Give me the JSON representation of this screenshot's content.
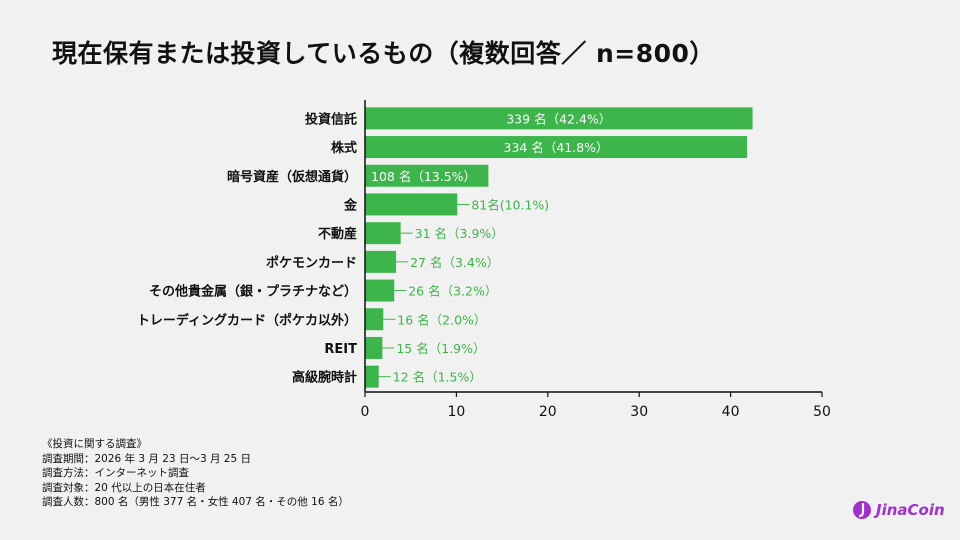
{
  "title": "現在保有または投資しているもの（複数回答／ n=800）",
  "chart_data": {
    "type": "bar",
    "orientation": "horizontal",
    "categories": [
      "投資信託",
      "株式",
      "暗号資産（仮想通貨）",
      "金",
      "不動産",
      "ポケモンカード",
      "その他貴金属（銀・プラチナなど）",
      "トレーディングカード（ポケカ以外）",
      "REIT",
      "高級腕時計"
    ],
    "values": [
      42.4,
      41.8,
      13.5,
      10.1,
      3.9,
      3.4,
      3.2,
      2.0,
      1.9,
      1.5
    ],
    "data_labels": [
      "339 名（42.4%）",
      "334 名（41.8%）",
      "108 名（13.5%）",
      "81名(10.1%)",
      "31 名（3.9%）",
      "27 名（3.4%）",
      "26 名（3.2%）",
      "16 名（2.0%）",
      "15 名（1.9%）",
      "12 名（1.5%）"
    ],
    "xlim": [
      0,
      50
    ],
    "xticks": [
      "0",
      "10",
      "20",
      "30",
      "40",
      "50"
    ],
    "grid": false,
    "bar_color": "#3cb54a"
  },
  "notes": {
    "heading": "《投資に関する調査》",
    "lines": [
      "調査期間：2026 年 3 月 23 日〜3 月 25 日",
      "調査方法：インターネット調査",
      "調査対象：20 代以上の日本在住者",
      "調査人数：800 名（男性 377 名・女性 407 名・その他 16 名）"
    ]
  },
  "logo": {
    "text": "JinaCoin",
    "color": "#a22fd0"
  }
}
